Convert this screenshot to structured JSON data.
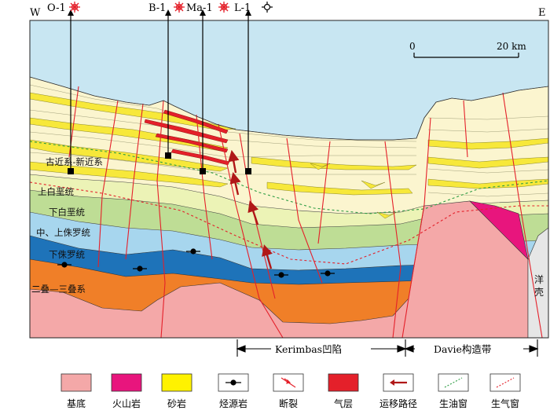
{
  "compass": {
    "west": "W",
    "east": "E"
  },
  "wells": [
    {
      "label": "O-1",
      "type": "gas-oil"
    },
    {
      "label": "B-1",
      "type": "gas-oil"
    },
    {
      "label": "Ma-1",
      "type": "gas-oil"
    },
    {
      "label": "L-1",
      "type": "dry"
    }
  ],
  "scale_bar": {
    "start": "0",
    "end": "20 km"
  },
  "strata_labels": [
    "古近系-新近系",
    "上白垩统",
    "下白垩统",
    "中、上侏罗统",
    "下侏罗统",
    "二叠—三叠系"
  ],
  "ocean_crust_label": "洋壳",
  "regions": [
    {
      "label": "Kerimbas凹陷"
    },
    {
      "label": "Davie构造带"
    }
  ],
  "legend": [
    {
      "label": "基底",
      "icon": "basement-swatch",
      "color": "#f4a8a8"
    },
    {
      "label": "火山岩",
      "icon": "volcanic-swatch",
      "color": "#e8157d"
    },
    {
      "label": "砂岩",
      "icon": "sandstone-swatch",
      "color": "#fff200"
    },
    {
      "label": "烃源岩",
      "icon": "source-rock-icon",
      "color": "#000000"
    },
    {
      "label": "断裂",
      "icon": "fault-icon",
      "color": "#e4202a"
    },
    {
      "label": "气层",
      "icon": "gas-layer-swatch",
      "color": "#e4202a"
    },
    {
      "label": "运移路径",
      "icon": "migration-arrow-icon",
      "color": "#b01818"
    },
    {
      "label": "生油窗",
      "icon": "oil-window-line-icon",
      "color": "#2e9d44"
    },
    {
      "label": "生气窗",
      "icon": "gas-window-line-icon",
      "color": "#e4202a"
    }
  ]
}
